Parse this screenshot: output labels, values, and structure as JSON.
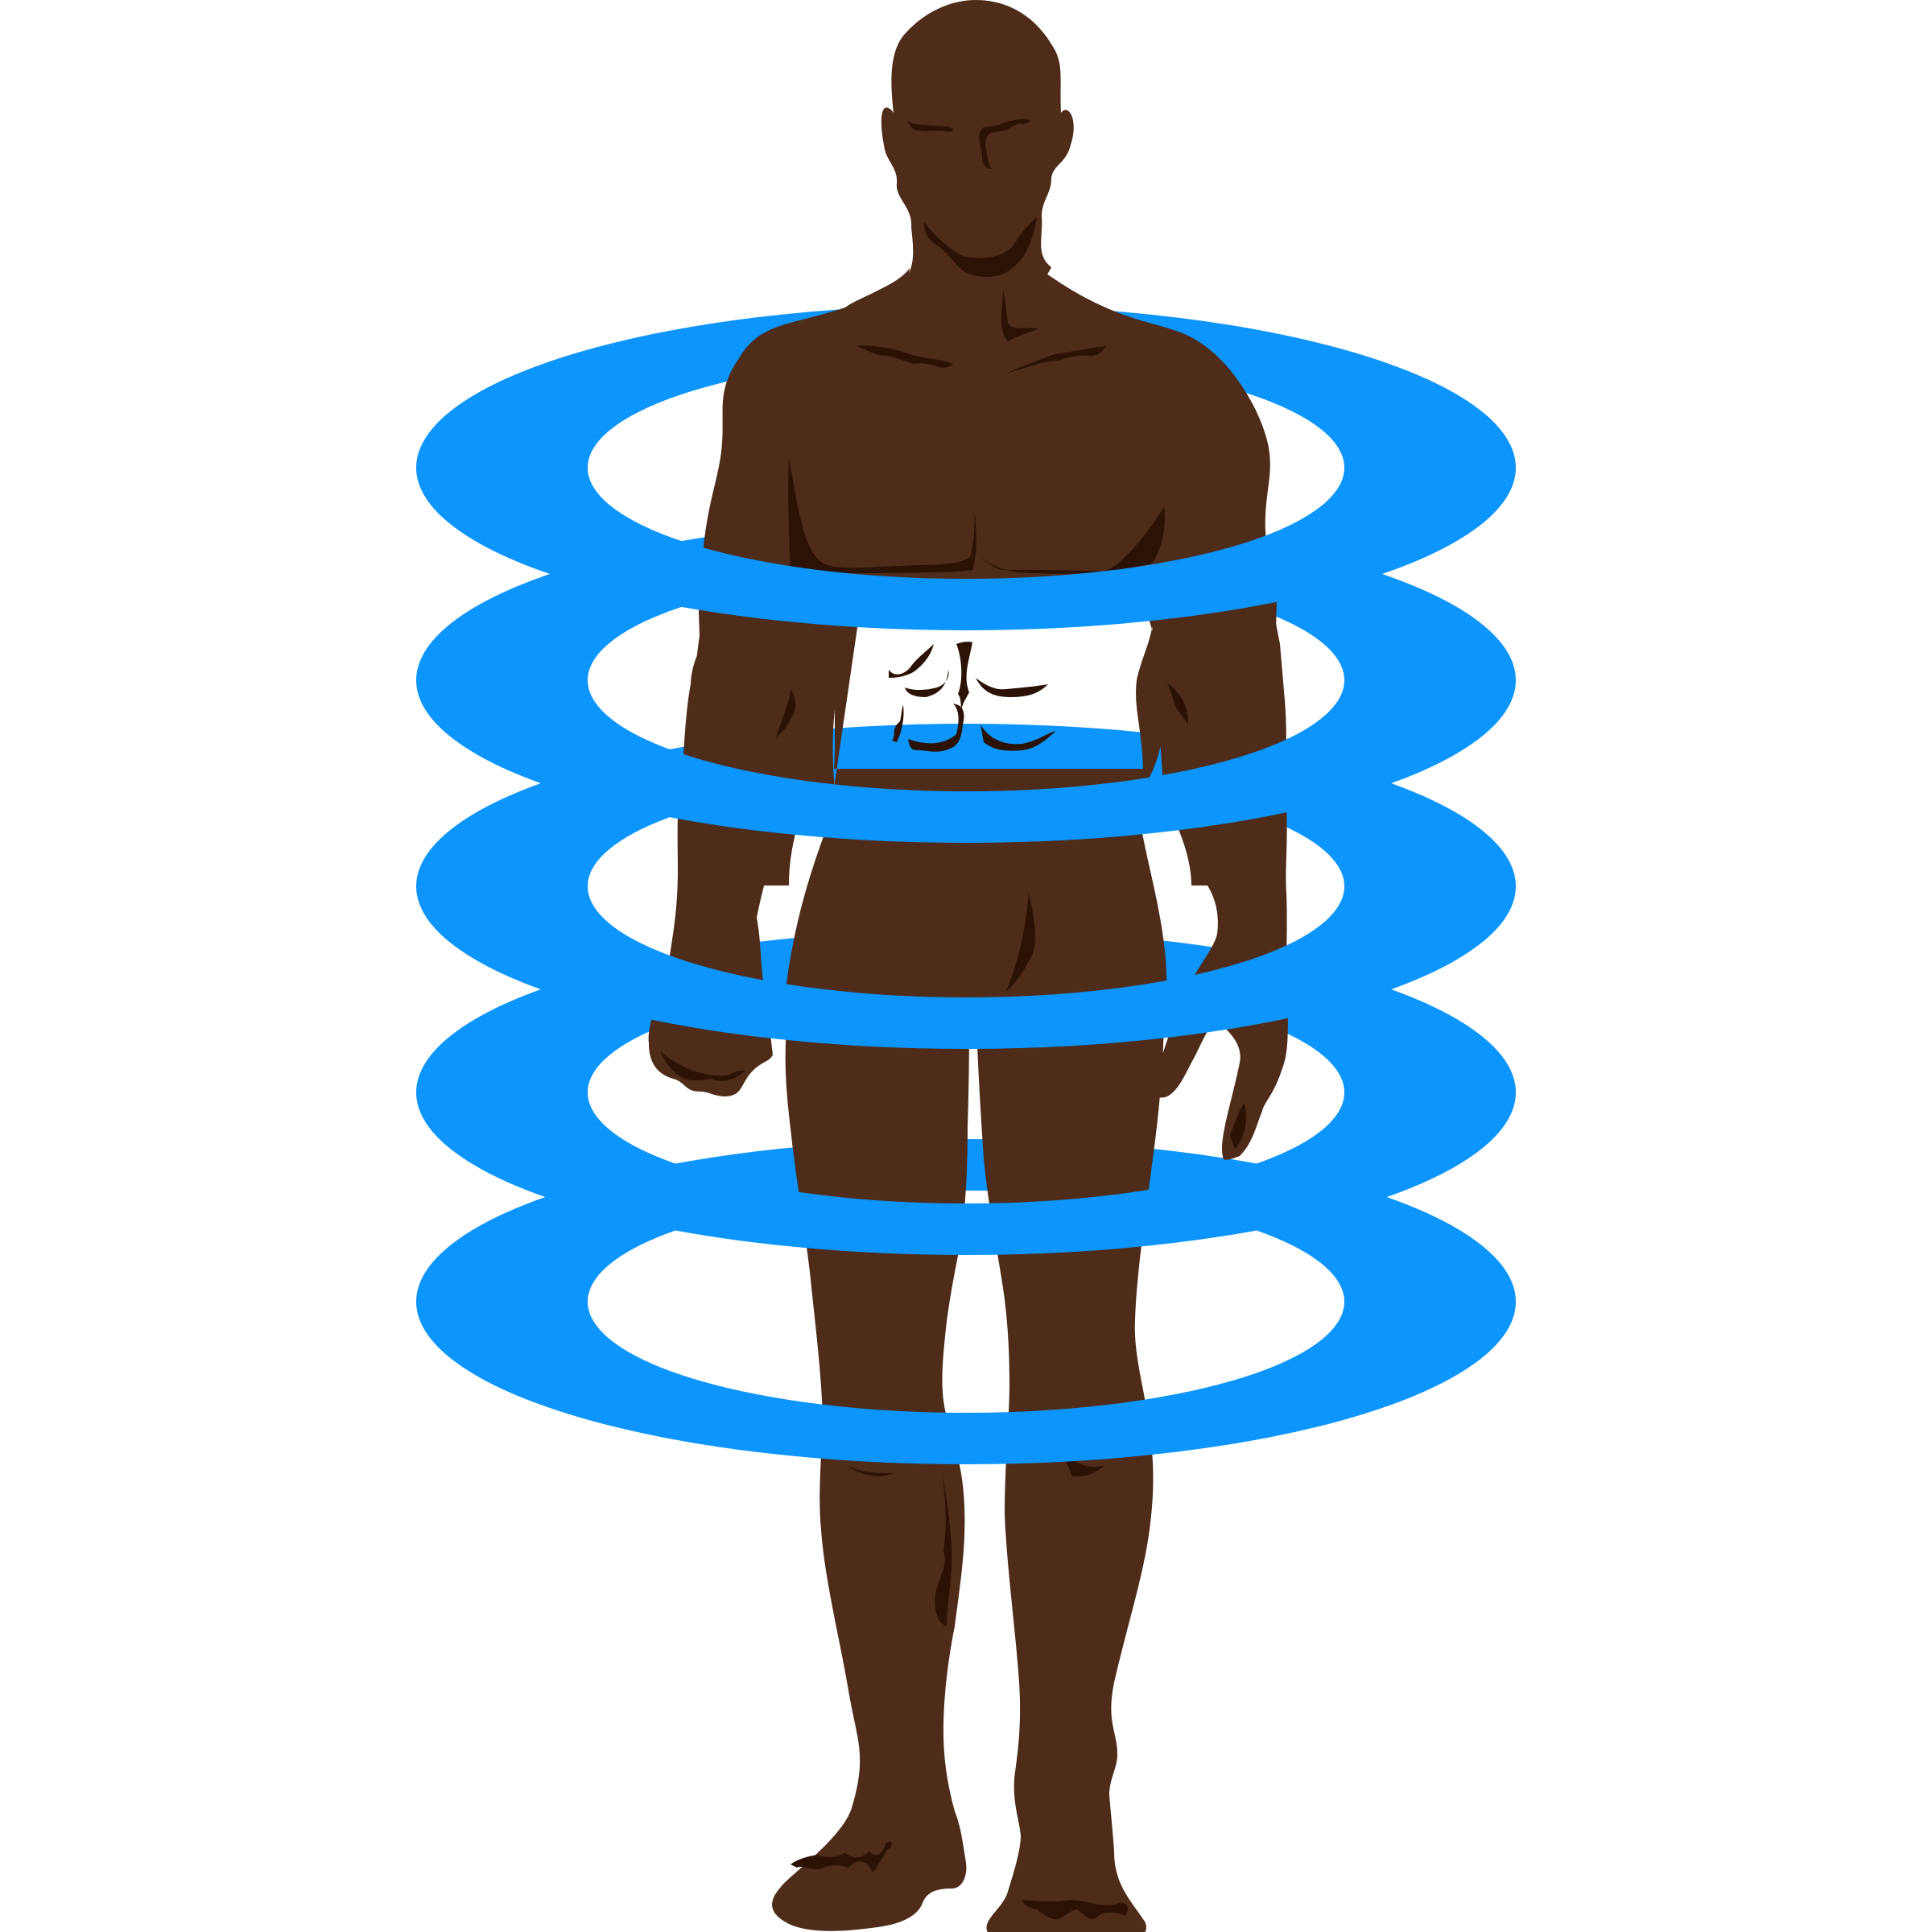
{
  "illustration": {
    "subject_icon": "human-figure-icon",
    "effect_icon": "scan-rings-icon",
    "ring_count": 5
  },
  "colors": {
    "background": "#ffffff",
    "skin": "#4e2c19",
    "skin_shadow": "#2b1205",
    "ring": "#0c95fc"
  }
}
